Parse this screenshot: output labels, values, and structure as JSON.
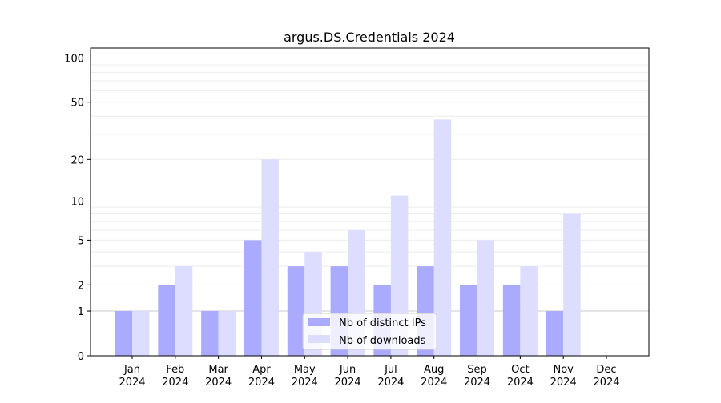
{
  "chart_data": {
    "type": "bar",
    "title": "argus.DS.Credentials 2024",
    "xlabel": "",
    "ylabel": "",
    "y_scale": "log10(1+y)",
    "ylim": [
      0,
      117
    ],
    "yticks": [
      0,
      1,
      2,
      5,
      10,
      20,
      50,
      100
    ],
    "grid": {
      "major": [
        1,
        10,
        100
      ],
      "minor": [
        2,
        3,
        4,
        5,
        6,
        7,
        8,
        9,
        20,
        30,
        40,
        50,
        60,
        70,
        80,
        90
      ]
    },
    "categories": [
      "Jan\n2024",
      "Feb\n2024",
      "Mar\n2024",
      "Apr\n2024",
      "May\n2024",
      "Jun\n2024",
      "Jul\n2024",
      "Aug\n2024",
      "Sep\n2024",
      "Oct\n2024",
      "Nov\n2024",
      "Dec\n2024"
    ],
    "series": [
      {
        "name": "Nb of distinct IPs",
        "color": "#aaaaff",
        "values": [
          1,
          2,
          1,
          5,
          3,
          3,
          2,
          3,
          2,
          2,
          1,
          0
        ]
      },
      {
        "name": "Nb of downloads",
        "color": "#ddddff",
        "values": [
          1,
          3,
          1,
          20,
          4,
          6,
          11,
          38,
          5,
          3,
          8,
          0
        ]
      }
    ],
    "legend_placement": "lower-center"
  }
}
